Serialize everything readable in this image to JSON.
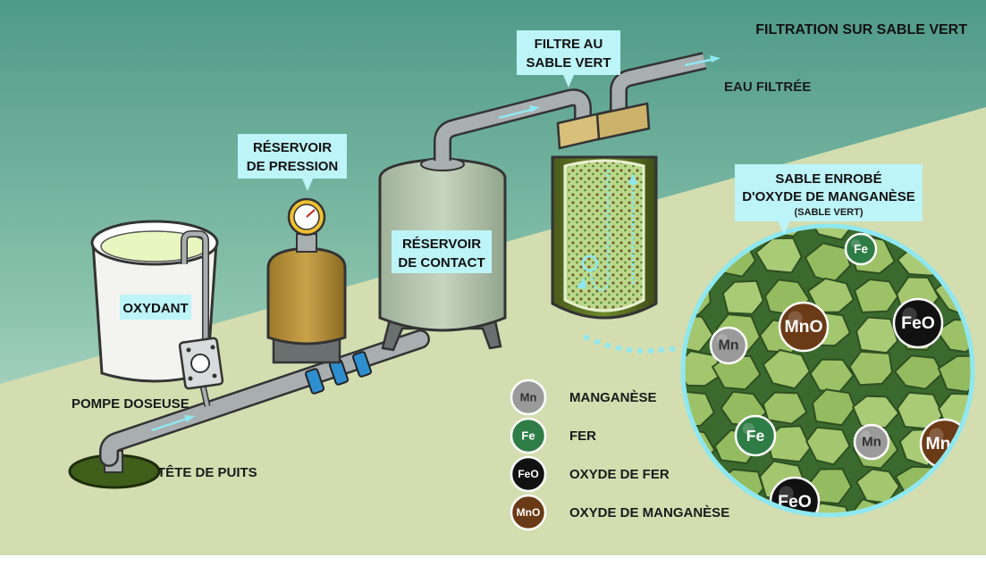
{
  "title": "FILTRATION SUR SABLE VERT",
  "colors": {
    "sky_top": "#5b9e8d",
    "sky_bottom": "#cfe8d8",
    "ground": "#d3ddb0",
    "callout": "#bdf4f8",
    "pipe": "#a9aeb0",
    "arrow": "#8fe8f0",
    "sand": "#9fc26b",
    "manganese": "#9a9a9a",
    "fer": "#2f7d46",
    "oxyde_fer": "#111111",
    "oxyde_manganese": "#6b3a16"
  },
  "labels": {
    "oxydant": "OXYDANT",
    "pompe_doseuse": "POMPE DOSEUSE",
    "tete_de_puits": "TÊTE DE PUITS",
    "reservoir_pression_1": "RÉSERVOIR",
    "reservoir_pression_2": "DE PRESSION",
    "reservoir_contact_1": "RÉSERVOIR",
    "reservoir_contact_2": "DE CONTACT",
    "filtre_1": "FILTRE AU",
    "filtre_2": "SABLE VERT",
    "eau_filtree": "EAU FILTRÉE",
    "sable_1": "SABLE ENROBÉ",
    "sable_2": "D'OXYDE DE MANGANÈSE",
    "sable_3": "(SABLE VERT)"
  },
  "legend": [
    {
      "symbol": "Mn",
      "label": "MANGANÈSE",
      "color": "#9a9a9a"
    },
    {
      "symbol": "Fe",
      "label": "FER",
      "color": "#2f7d46"
    },
    {
      "symbol": "FeO",
      "label": "OXYDE DE FER",
      "color": "#111111"
    },
    {
      "symbol": "MnO",
      "label": "OXYDE DE MANGANÈSE",
      "color": "#6b3a16"
    }
  ],
  "particles": [
    {
      "symbol": "Fe"
    },
    {
      "symbol": "MnO"
    },
    {
      "symbol": "FeO"
    },
    {
      "symbol": "Mn"
    },
    {
      "symbol": "Fe"
    },
    {
      "symbol": "Mn"
    },
    {
      "symbol": "MnO"
    },
    {
      "symbol": "FeO"
    }
  ]
}
